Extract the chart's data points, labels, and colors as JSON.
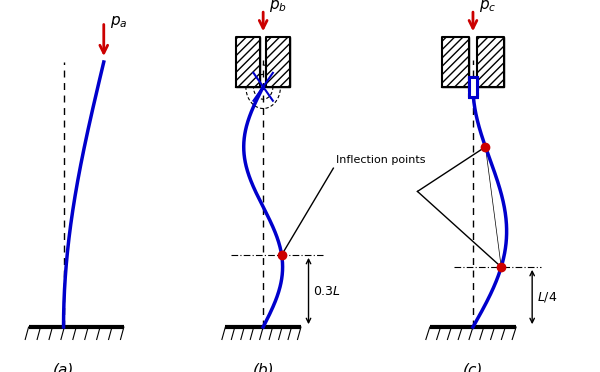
{
  "fig_width": 6.0,
  "fig_height": 3.72,
  "dpi": 100,
  "bg_color": "#ffffff",
  "label_a": "(a)",
  "label_b": "(b)",
  "label_c": "(c)",
  "pa_label": "$p_a$",
  "pb_label": "$p_b$",
  "pc_label": "$p_c$",
  "inflection_label": "Inflection points",
  "dim_b_label": "0.3$L$",
  "dim_c_label": "$L$/4",
  "blue": "#0000cc",
  "red": "#cc0000",
  "black": "#000000"
}
